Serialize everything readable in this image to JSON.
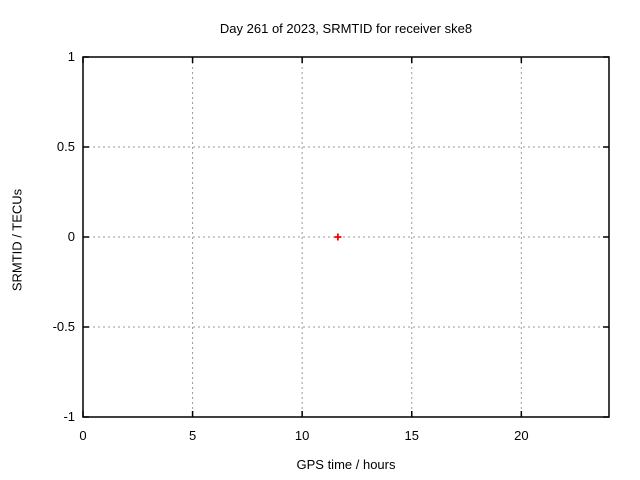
{
  "chart_data": {
    "type": "scatter",
    "title": "Day 261 of 2023, SRMTID for receiver ske8",
    "xlabel": "GPS time / hours",
    "ylabel": "SRMTID / TECUs",
    "xlim": [
      0,
      24
    ],
    "ylim": [
      -1,
      1
    ],
    "xticks": [
      0,
      5,
      10,
      15,
      20
    ],
    "yticks": [
      -1,
      -0.5,
      0,
      0.5,
      1
    ],
    "grid": true,
    "legend": "none",
    "series": [
      {
        "name": "SRMTID",
        "marker": "plus",
        "color": "#ff0000",
        "points": [
          {
            "x": 11.63,
            "y": 0
          }
        ]
      }
    ]
  },
  "colors": {
    "background": "#ffffff",
    "border": "#000000",
    "grid": "#999999",
    "marker": "#ff0000",
    "text": "#000000"
  }
}
